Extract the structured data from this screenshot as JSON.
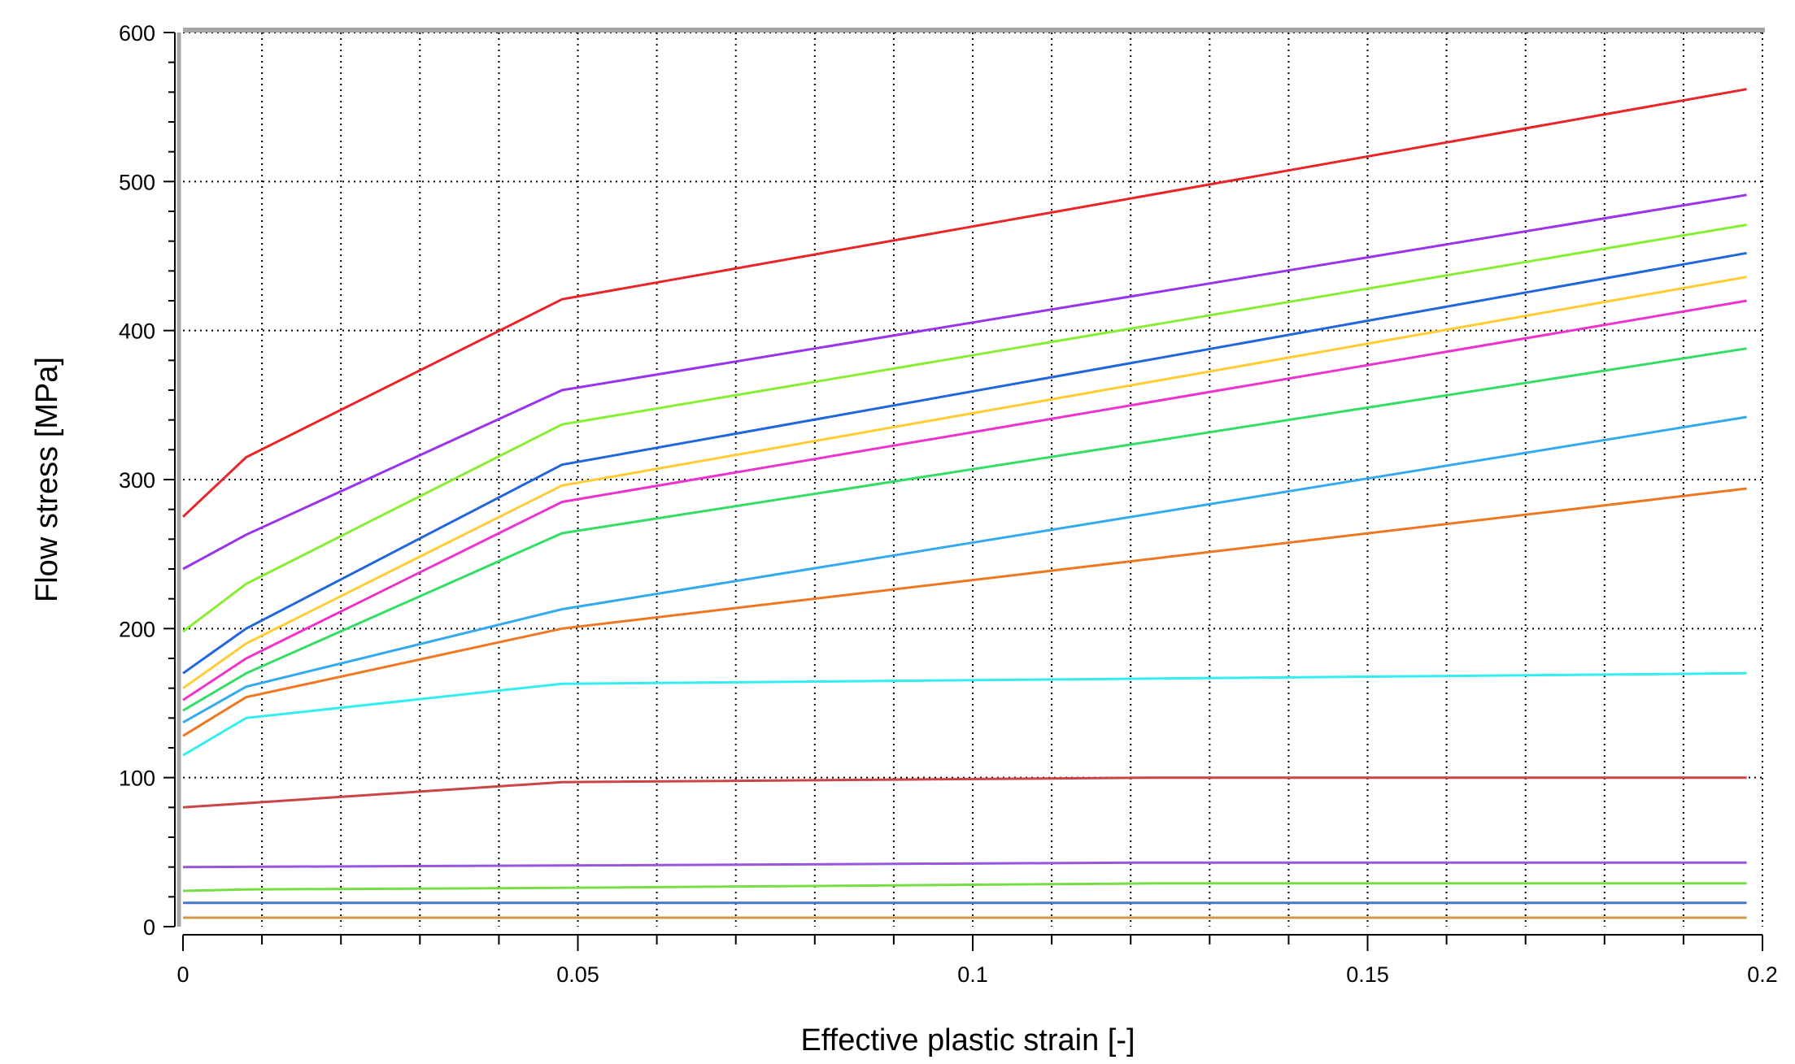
{
  "chart_data": {
    "type": "line",
    "title": "",
    "xlabel": "Effective plastic strain [-]",
    "ylabel": "Flow stress [MPa]",
    "xlim": [
      0,
      0.2
    ],
    "ylim": [
      0,
      600
    ],
    "x_ticks": [
      0,
      0.05,
      0.1,
      0.15,
      0.2
    ],
    "x_tick_labels": [
      "0",
      "0.05",
      "0.1",
      "0.15",
      "0.2"
    ],
    "y_ticks": [
      0,
      100,
      200,
      300,
      400,
      500,
      600
    ],
    "y_tick_labels": [
      "0",
      "100",
      "200",
      "300",
      "400",
      "500",
      "600"
    ],
    "grid": true,
    "grid_style": "dotted",
    "legend": "none",
    "series": [
      {
        "color": "#e8262a",
        "x": [
          0,
          0.008,
          0.048,
          0.198
        ],
        "y": [
          275,
          315,
          421,
          562
        ]
      },
      {
        "color": "#9933ee",
        "x": [
          0,
          0.008,
          0.048,
          0.198
        ],
        "y": [
          240,
          263,
          360,
          491
        ]
      },
      {
        "color": "#88ee33",
        "x": [
          0,
          0.008,
          0.048,
          0.198
        ],
        "y": [
          198,
          230,
          337,
          471
        ]
      },
      {
        "color": "#2266dd",
        "x": [
          0,
          0.008,
          0.048,
          0.198
        ],
        "y": [
          170,
          200,
          310,
          452
        ]
      },
      {
        "color": "#ffcc33",
        "x": [
          0,
          0.008,
          0.048,
          0.198
        ],
        "y": [
          160,
          190,
          296,
          436
        ]
      },
      {
        "color": "#ee33cc",
        "x": [
          0,
          0.008,
          0.048,
          0.198
        ],
        "y": [
          152,
          180,
          285,
          420
        ]
      },
      {
        "color": "#33dd66",
        "x": [
          0,
          0.008,
          0.048,
          0.198
        ],
        "y": [
          145,
          170,
          264,
          388
        ]
      },
      {
        "color": "#33aaee",
        "x": [
          0,
          0.008,
          0.048,
          0.198
        ],
        "y": [
          137,
          161,
          213,
          342
        ]
      },
      {
        "color": "#ee7722",
        "x": [
          0,
          0.008,
          0.048,
          0.198
        ],
        "y": [
          128,
          154,
          200,
          294
        ]
      },
      {
        "color": "#33eeee",
        "x": [
          0,
          0.008,
          0.048,
          0.198
        ],
        "y": [
          115,
          140,
          163,
          170
        ]
      },
      {
        "color": "#cc4444",
        "x": [
          0,
          0.048,
          0.123,
          0.198
        ],
        "y": [
          80,
          97,
          100,
          100
        ]
      },
      {
        "color": "#9955dd",
        "x": [
          0,
          0.048,
          0.123,
          0.198
        ],
        "y": [
          40,
          41,
          43,
          43
        ]
      },
      {
        "color": "#77dd44",
        "x": [
          0,
          0.008,
          0.048,
          0.123,
          0.198
        ],
        "y": [
          24,
          25,
          26,
          29,
          29
        ]
      },
      {
        "color": "#4477cc",
        "x": [
          0,
          0.198
        ],
        "y": [
          16,
          16
        ]
      },
      {
        "color": "#cc9944",
        "x": [
          0,
          0.198
        ],
        "y": [
          6,
          6
        ]
      }
    ]
  }
}
